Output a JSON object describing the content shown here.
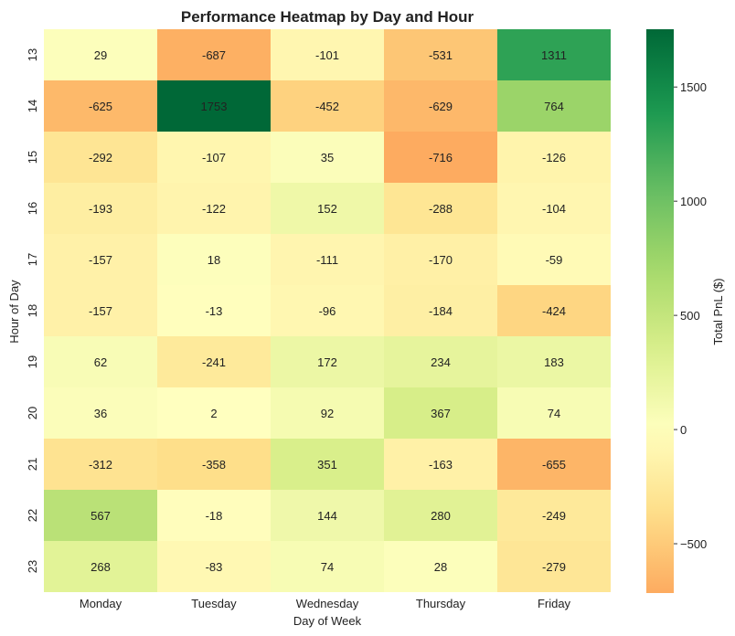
{
  "chart_data": {
    "type": "heatmap",
    "title": "Performance Heatmap by Day and Hour",
    "xlabel": "Day of Week",
    "ylabel": "Hour of Day",
    "x_categories": [
      "Monday",
      "Tuesday",
      "Wednesday",
      "Thursday",
      "Friday"
    ],
    "y_categories": [
      "13",
      "14",
      "15",
      "16",
      "17",
      "18",
      "19",
      "20",
      "21",
      "22",
      "23"
    ],
    "values": [
      [
        29,
        -687,
        -101,
        -531,
        1311
      ],
      [
        -625,
        1753,
        -452,
        -629,
        764
      ],
      [
        -292,
        -107,
        35,
        -716,
        -126
      ],
      [
        -193,
        -122,
        152,
        -288,
        -104
      ],
      [
        -157,
        18,
        -111,
        -170,
        -59
      ],
      [
        -157,
        -13,
        -96,
        -184,
        -424
      ],
      [
        62,
        -241,
        172,
        234,
        183
      ],
      [
        36,
        2,
        92,
        367,
        74
      ],
      [
        -312,
        -358,
        351,
        -163,
        -655
      ],
      [
        567,
        -18,
        144,
        280,
        -249
      ],
      [
        268,
        -83,
        74,
        28,
        -279
      ]
    ],
    "colorbar": {
      "label": "Total PnL ($)",
      "vmin": -716,
      "vmax": 1753,
      "ticks": [
        -500,
        0,
        500,
        1000,
        1500
      ],
      "tick_labels": [
        "−500",
        "0",
        "500",
        "1000",
        "1500"
      ],
      "colormap": "RdYlGn",
      "center": 0
    }
  }
}
